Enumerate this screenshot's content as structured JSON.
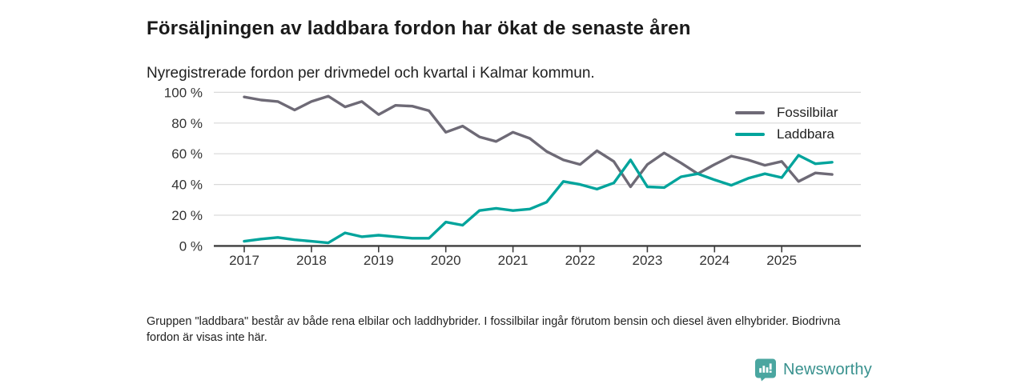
{
  "header": {
    "title": "Försäljningen av laddbara fordon har ökat de senaste åren",
    "subtitle": "Nyregistrerade fordon per drivmedel och kvartal i Kalmar kommun."
  },
  "chart_data": {
    "type": "line",
    "unit": "%",
    "x": [
      "2017 Q1",
      "2017 Q2",
      "2017 Q3",
      "2017 Q4",
      "2018 Q1",
      "2018 Q2",
      "2018 Q3",
      "2018 Q4",
      "2019 Q1",
      "2019 Q2",
      "2019 Q3",
      "2019 Q4",
      "2020 Q1",
      "2020 Q2",
      "2020 Q3",
      "2020 Q4",
      "2021 Q1",
      "2021 Q2",
      "2021 Q3",
      "2021 Q4",
      "2022 Q1",
      "2022 Q2",
      "2022 Q3",
      "2022 Q4",
      "2023 Q1",
      "2023 Q2",
      "2023 Q3",
      "2023 Q4",
      "2024 Q1",
      "2024 Q2",
      "2024 Q3",
      "2024 Q4",
      "2025 Q1",
      "2025 Q2",
      "2025 Q3",
      "2025 Q4"
    ],
    "x_tick_labels": [
      "2017",
      "2018",
      "2019",
      "2020",
      "2021",
      "2022",
      "2023",
      "2024",
      "2025"
    ],
    "x_tick_indices": [
      0,
      4,
      8,
      12,
      16,
      20,
      24,
      28,
      32
    ],
    "series": [
      {
        "name": "Fossilbilar",
        "color": "#6e6a76",
        "values": [
          97,
          95,
          94,
          88.5,
          94,
          97.5,
          90.5,
          94,
          85.5,
          91.5,
          91,
          88,
          74,
          78,
          71,
          68,
          74,
          70,
          61.5,
          56,
          53,
          62,
          55,
          38.5,
          53,
          60.5,
          54,
          47,
          53,
          58.5,
          56,
          52.5,
          55,
          42,
          47.5,
          46.5
        ]
      },
      {
        "name": "Laddbara",
        "color": "#00a49c",
        "values": [
          3,
          4.5,
          5.5,
          4,
          3,
          2,
          8.5,
          6,
          7,
          6,
          5,
          5,
          15.5,
          13.5,
          23,
          24.5,
          23,
          24,
          28.5,
          42,
          40,
          37,
          41,
          56,
          38.5,
          38,
          45,
          47,
          43,
          39.5,
          44,
          47,
          44.5,
          59,
          53.5,
          54.5
        ]
      }
    ],
    "y_ticks": [
      0,
      20,
      40,
      60,
      80,
      100
    ],
    "y_tick_labels": [
      "0 %",
      "20 %",
      "40 %",
      "60 %",
      "80 %",
      "100 %"
    ],
    "ylim": [
      0,
      100
    ],
    "grid": true,
    "legend_position": "top-right",
    "grid_color": "#d9d9d9",
    "axis_color": "#3d3d3d",
    "tick_text_color": "#333333"
  },
  "footnote": {
    "text": "Gruppen \"laddbara\" består av både rena elbilar och laddhybrider. I fossilbilar ingår förutom bensin och diesel även elhybrider. Biodrivna fordon är visas inte här."
  },
  "branding": {
    "name": "Newsworthy",
    "icon": "bar-chart-pin-icon",
    "icon_color": "#4aa6a0",
    "text_color": "#38918e"
  }
}
